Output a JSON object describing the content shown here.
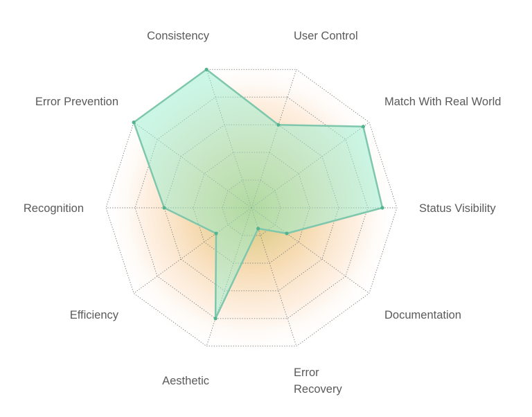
{
  "chart_data": {
    "type": "radar",
    "title": "",
    "axes": [
      "User Control",
      "Match With Real World",
      "Status Visibility",
      "Documentation",
      "Error Recovery",
      "Aesthetic",
      "Efficiency",
      "Recognition",
      "Error Prevention",
      "Consistency"
    ],
    "label_lines": [
      [
        "User Control"
      ],
      [
        "Match With Real World"
      ],
      [
        "Status Visibility"
      ],
      [
        "Documentation"
      ],
      [
        "Error",
        "Recovery"
      ],
      [
        "Aesthetic"
      ],
      [
        "Efficiency"
      ],
      [
        "Recognition"
      ],
      [
        "Error Prevention"
      ],
      [
        "Consistency"
      ]
    ],
    "series": [
      {
        "values": [
          0.6,
          0.95,
          0.9,
          0.3,
          0.15,
          0.8,
          0.3,
          0.6,
          1.0,
          1.0
        ]
      }
    ],
    "range": [
      0,
      1
    ],
    "rings": 5,
    "colors": {
      "fill": "#98eecd",
      "stroke": "#7ec7ad",
      "point": "#52b48f",
      "grid": "#777777",
      "glow_inner": "#c7c26a",
      "glow_outer": "#fbd3ad",
      "label": "#5a5a5a"
    }
  }
}
